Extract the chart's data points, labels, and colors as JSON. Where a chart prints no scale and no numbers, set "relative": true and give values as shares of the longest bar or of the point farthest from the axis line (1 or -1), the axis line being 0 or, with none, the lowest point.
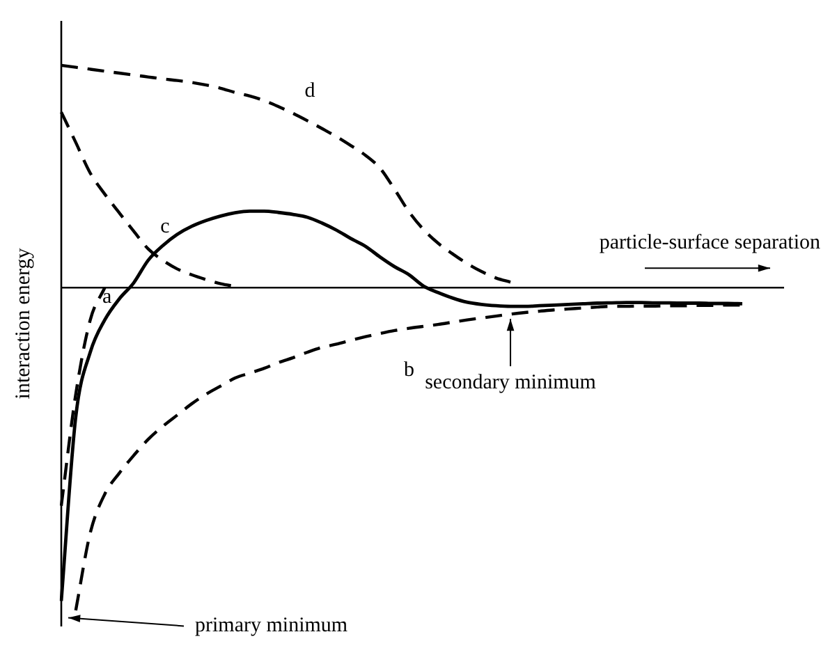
{
  "chart_data": {
    "type": "line",
    "relative": true,
    "ylabel": "interaction energy",
    "xlabel": "particle-surface separation",
    "legend": false,
    "marker": "none",
    "categories": [
      null,
      null,
      null,
      null,
      null,
      null,
      null,
      null,
      null,
      null,
      null,
      null,
      null,
      null,
      null,
      null,
      null,
      null,
      null,
      null,
      null,
      null,
      null,
      null,
      null,
      null,
      null,
      null,
      null,
      null,
      null,
      null,
      null,
      null,
      null,
      null,
      null,
      null,
      null,
      null,
      null,
      null,
      null,
      null,
      null,
      null,
      null,
      null
    ],
    "series": [
      {
        "color": "#000000",
        "line_style": "solid",
        "values": [
          -0.971,
          -0.4,
          -0.2,
          -0.1,
          -0.035,
          0.015,
          0.085,
          0.13,
          0.165,
          0.19,
          0.208,
          0.222,
          0.232,
          0.237,
          0.237,
          0.233,
          0.227,
          0.218,
          0.2,
          0.178,
          0.152,
          0.128,
          0.095,
          0.065,
          0.04,
          0.005,
          -0.015,
          -0.032,
          -0.045,
          -0.052,
          -0.056,
          -0.058,
          -0.058,
          -0.056,
          -0.054,
          -0.052,
          -0.05,
          -0.048,
          -0.047,
          -0.046,
          -0.046,
          -0.047,
          -0.047,
          -0.048,
          -0.048,
          -0.049,
          -0.049,
          -0.05
        ]
      },
      {
        "name": "a",
        "color": "#000000",
        "line_style": "dashed",
        "values": [
          -0.676,
          -0.33,
          -0.1,
          0,
          null,
          null,
          null,
          null,
          null,
          null,
          null,
          null,
          null,
          null,
          null,
          null,
          null,
          null,
          null,
          null,
          null,
          null,
          null,
          null,
          null,
          null,
          null,
          null,
          null,
          null,
          null,
          null,
          null,
          null,
          null,
          null,
          null,
          null,
          null,
          null,
          null,
          null,
          null,
          null,
          null,
          null,
          null,
          null
        ]
      },
      {
        "name": "b",
        "color": "#000000",
        "line_style": "dashed",
        "values": [
          null,
          -1,
          -0.76,
          -0.64,
          -0.575,
          -0.52,
          -0.47,
          -0.43,
          -0.395,
          -0.36,
          -0.33,
          -0.305,
          -0.28,
          -0.265,
          -0.25,
          -0.232,
          -0.217,
          -0.2,
          -0.185,
          -0.175,
          -0.163,
          -0.152,
          -0.142,
          -0.133,
          -0.126,
          -0.12,
          -0.114,
          -0.107,
          -0.1,
          -0.094,
          -0.088,
          -0.082,
          -0.077,
          -0.073,
          -0.069,
          -0.066,
          -0.063,
          -0.06,
          -0.058,
          -0.058,
          -0.057,
          -0.057,
          -0.056,
          -0.056,
          -0.055,
          -0.055,
          -0.054,
          -0.054
        ]
      },
      {
        "name": "c",
        "color": "#000000",
        "line_style": "dashed",
        "values": [
          0.544,
          0.45,
          0.355,
          0.29,
          0.232,
          0.175,
          0.12,
          0.085,
          0.058,
          0.04,
          0.025,
          0.012,
          0.004,
          null,
          null,
          null,
          null,
          null,
          null,
          null,
          null,
          null,
          null,
          null,
          null,
          null,
          null,
          null,
          null,
          null,
          null,
          null,
          null,
          null,
          null,
          null,
          null,
          null,
          null,
          null,
          null,
          null,
          null,
          null,
          null,
          null,
          null,
          null
        ]
      },
      {
        "name": "d",
        "color": "#000000",
        "line_style": "dashed",
        "values": [
          0.689,
          0.683,
          0.677,
          0.671,
          0.665,
          0.659,
          0.653,
          0.647,
          0.642,
          0.636,
          0.628,
          0.618,
          0.605,
          0.594,
          0.58,
          0.561,
          0.54,
          0.517,
          0.493,
          0.468,
          0.44,
          0.41,
          0.37,
          0.305,
          0.235,
          0.18,
          0.138,
          0.105,
          0.075,
          0.05,
          0.03,
          0.017,
          null,
          null,
          null,
          null,
          null,
          null,
          null,
          null,
          null,
          null,
          null,
          null,
          null,
          null,
          null,
          null
        ]
      }
    ],
    "annotations": [
      "secondary minimum",
      "primary minimum"
    ]
  }
}
